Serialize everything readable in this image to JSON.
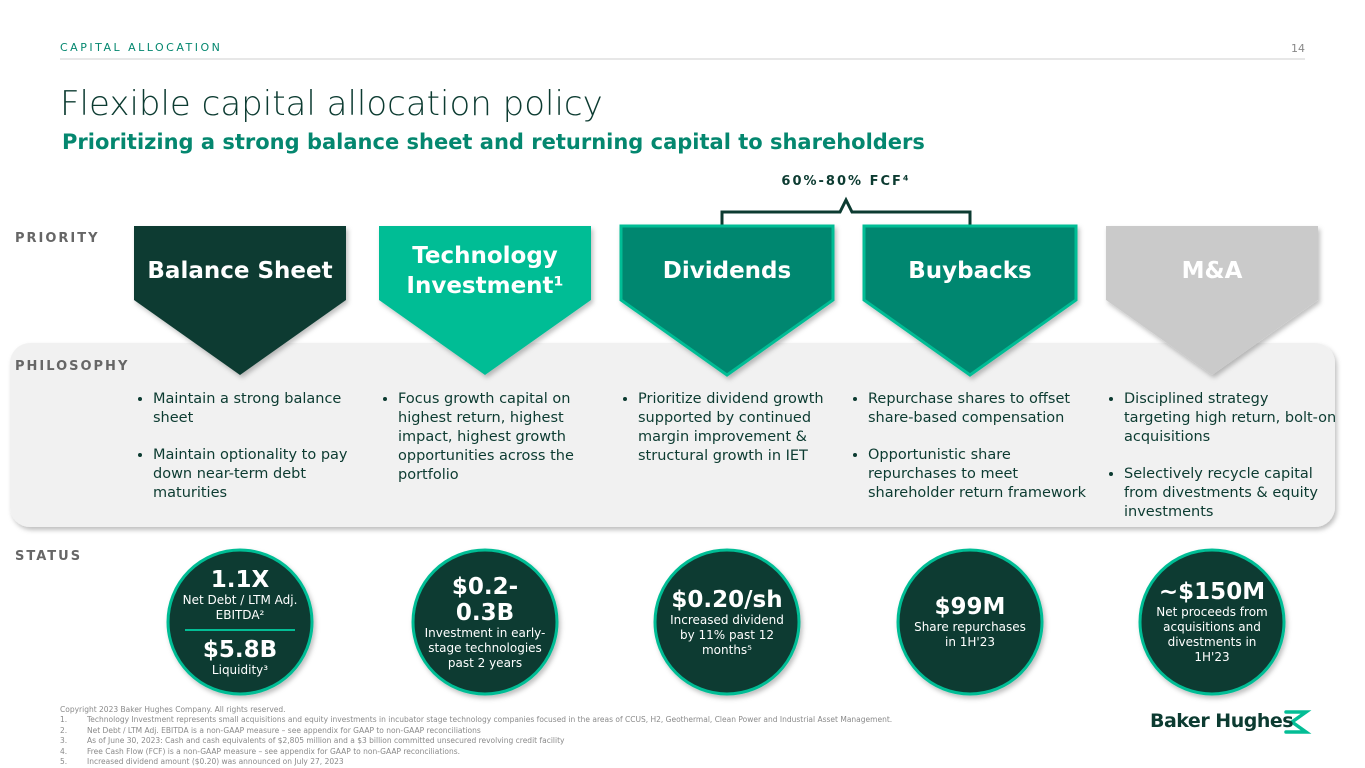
{
  "header": {
    "section": "CAPITAL ALLOCATION",
    "page": "14",
    "title": "Flexible capital allocation policy",
    "subtitle": "Prioritizing a strong balance sheet and returning capital to shareholders"
  },
  "bracket_label": "60%-80% FCF⁴",
  "row_labels": [
    "PRIORITY",
    "PHILOSOPHY",
    "STATUS"
  ],
  "columns": [
    {
      "priority": "Balance Sheet",
      "color": "#0c3b31",
      "bullets": [
        "Maintain a strong balance sheet",
        "Maintain optionality to pay down near-term debt maturities"
      ],
      "status": [
        {
          "value": "1.1X",
          "label": "Net Debt / LTM Adj. EBITDA²"
        },
        {
          "value": "$5.8B",
          "label": "Liquidity³"
        }
      ]
    },
    {
      "priority": "Technology Investment¹",
      "color": "#03bd95",
      "bullets": [
        "Focus growth capital on highest return, highest impact, highest growth opportunities across the portfolio"
      ],
      "status": [
        {
          "value": "$0.2-0.3B",
          "label": "Investment in early-stage technologies past 2 years"
        }
      ]
    },
    {
      "priority": "Dividends",
      "color": "#04876f",
      "bullets": [
        "Prioritize dividend growth supported by continued margin improvement & structural growth in IET"
      ],
      "status": [
        {
          "value": "$0.20/sh",
          "label": "Increased dividend by 11% past 12 months⁵"
        }
      ]
    },
    {
      "priority": "Buybacks",
      "color": "#04876f",
      "bullets": [
        "Repurchase shares to offset share-based compensation",
        "Opportunistic share repurchases to meet shareholder return framework"
      ],
      "status": [
        {
          "value": "$99M",
          "label": "Share repurchases in 1H'23"
        }
      ]
    },
    {
      "priority": "M&A",
      "color": "#cacaca",
      "bullets": [
        "Disciplined strategy targeting high return, bolt-on acquisitions",
        "Selectively recycle capital from divestments & equity investments"
      ],
      "status": [
        {
          "value": "~$150M",
          "label": "Net proceeds from acquisitions and divestments in 1H'23"
        }
      ]
    }
  ],
  "footer": {
    "copyright": "Copyright 2023 Baker Hughes Company. All rights reserved.",
    "notes": [
      {
        "num": "1.",
        "text": "Technology Investment represents small acquisitions and equity investments in incubator stage technology companies focused in the areas of CCUS, H2, Geothermal, Clean Power and Industrial Asset Management."
      },
      {
        "num": "2.",
        "text": "Net Debt / LTM Adj. EBITDA is a non-GAAP measure – see appendix for GAAP to non-GAAP reconciliations"
      },
      {
        "num": "3.",
        "text": "As of June 30, 2023: Cash and cash equivalents of $2,805 million and a $3 billion committed unsecured revolving credit facility"
      },
      {
        "num": "4.",
        "text": "Free Cash Flow (FCF) is a non-GAAP measure – see appendix for GAAP to non-GAAP reconciliations."
      },
      {
        "num": "5.",
        "text": "Increased dividend amount ($0.20) was announced on July 27, 2023"
      }
    ],
    "logo": "Baker Hughes"
  }
}
